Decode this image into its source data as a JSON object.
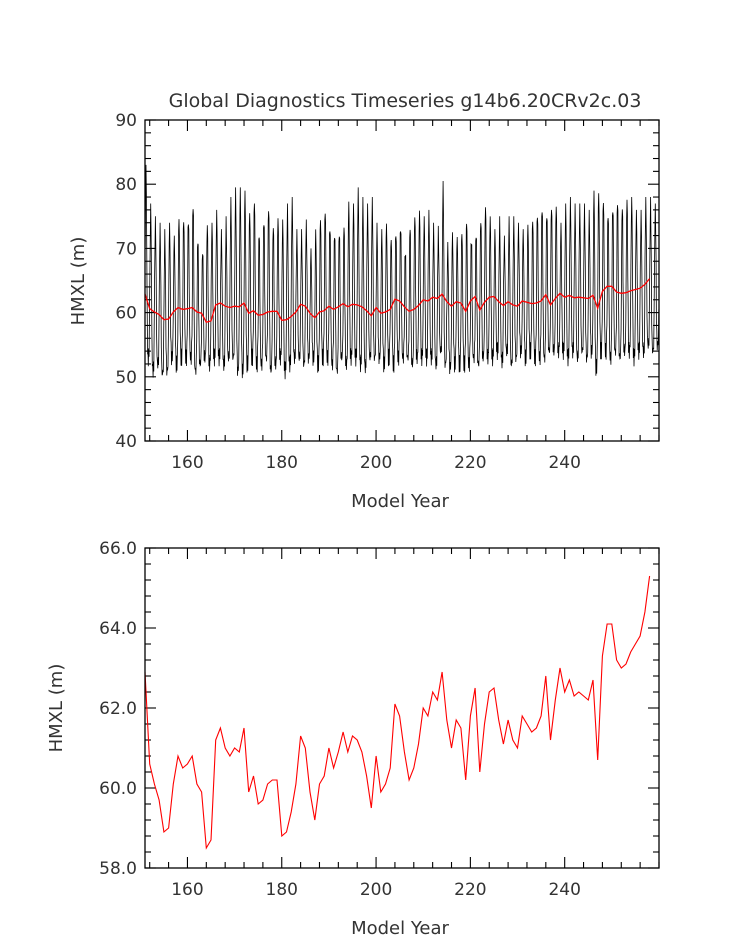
{
  "chart_data": [
    {
      "type": "line",
      "title": "Global Diagnostics Timeseries g14b6.20CRv2c.03",
      "xlabel": "Model Year",
      "ylabel": "HMXL (m)",
      "xlim": [
        151,
        260
      ],
      "ylim": [
        40,
        90
      ],
      "x_ticks": [
        160,
        180,
        200,
        220,
        240
      ],
      "y_ticks": [
        40,
        50,
        60,
        70,
        80,
        90
      ],
      "x_tick_labels": [
        "160",
        "180",
        "200",
        "220",
        "240"
      ],
      "y_tick_labels": [
        "40",
        "50",
        "60",
        "70",
        "80",
        "90"
      ],
      "x_minor_step": 4,
      "y_minor_step": 2,
      "series": [
        {
          "kind": "monthly",
          "color": "#000000",
          "note_values": "Monthly values; each model year oscillates between a winter maximum and a summer minimum.",
          "x_start": 151,
          "annual_max": [
            83,
            77,
            75,
            74,
            73,
            74,
            72,
            75,
            75,
            75,
            77.5,
            72,
            70,
            74,
            74,
            76,
            73,
            75,
            78,
            79.5,
            79.5,
            79,
            76,
            78,
            73,
            75,
            77,
            74,
            75,
            74.5,
            77,
            78,
            73,
            73,
            74.5,
            70,
            73,
            75,
            76.5,
            74,
            73,
            73,
            74,
            77.5,
            77,
            79.5,
            78,
            77,
            78,
            74,
            73,
            74,
            72,
            73,
            74,
            70,
            74,
            75.5,
            76,
            75,
            76,
            74,
            73.5,
            80.5,
            71,
            72.5,
            72,
            73,
            75,
            72,
            73,
            75,
            77,
            75,
            73,
            75,
            72,
            75,
            75,
            74,
            73,
            74,
            75,
            76,
            77,
            76,
            77,
            77,
            74,
            77,
            78,
            77,
            77,
            77,
            76,
            79,
            79,
            78,
            76,
            77,
            78,
            77,
            78,
            78,
            76,
            76,
            78,
            78,
            77,
            76,
            75
          ],
          "annual_min": [
            50,
            48,
            49,
            47.5,
            48,
            50,
            49,
            50,
            50,
            50,
            48,
            49,
            50,
            49,
            50,
            50,
            49,
            50,
            50,
            48,
            48,
            49,
            50,
            49,
            49,
            50,
            48,
            49,
            50,
            48,
            49,
            50,
            50,
            49,
            50,
            50,
            49,
            50,
            50,
            49,
            48,
            50,
            49,
            50,
            50,
            49,
            48.5,
            50,
            50,
            50,
            49,
            50,
            49,
            50,
            50,
            50,
            49,
            50,
            50,
            50,
            50,
            49,
            51,
            49,
            48.5,
            49,
            49,
            49,
            49,
            50,
            49,
            50,
            50,
            50,
            51,
            49.5,
            51,
            49,
            50,
            51,
            50,
            51,
            50,
            50,
            50,
            51,
            51,
            51,
            51,
            50,
            51,
            50,
            51,
            50,
            51,
            48.5,
            51,
            51,
            50,
            51,
            50,
            51,
            51,
            50,
            51,
            51,
            52,
            51,
            52,
            51,
            52
          ]
        },
        {
          "kind": "running",
          "color": "#ff0000",
          "note_values": "Annual mean, identical to the lower panel.",
          "x_start": 151
        }
      ]
    },
    {
      "type": "line",
      "title": "",
      "xlabel": "Model Year",
      "ylabel": "HMXL (m)",
      "xlim": [
        151,
        260
      ],
      "ylim": [
        58,
        66
      ],
      "x_ticks": [
        160,
        180,
        200,
        220,
        240
      ],
      "y_ticks": [
        58,
        60,
        62,
        64,
        66
      ],
      "x_tick_labels": [
        "160",
        "180",
        "200",
        "220",
        "240"
      ],
      "y_tick_labels": [
        "58.0",
        "60.0",
        "62.0",
        "64.0",
        "66.0"
      ],
      "x_minor_step": 4,
      "y_minor_step": 0.4,
      "series": [
        {
          "color": "#ff0000",
          "x_start": 151,
          "values": [
            62.9,
            60.6,
            60.1,
            59.7,
            58.9,
            59.0,
            60.1,
            60.8,
            60.5,
            60.6,
            60.8,
            60.1,
            59.9,
            58.5,
            58.7,
            61.2,
            61.5,
            61.0,
            60.8,
            61.0,
            60.9,
            61.5,
            59.9,
            60.3,
            59.6,
            59.7,
            60.1,
            60.2,
            60.2,
            58.8,
            58.9,
            59.4,
            60.1,
            61.3,
            61.0,
            59.9,
            59.2,
            60.1,
            60.3,
            61.0,
            60.5,
            60.9,
            61.4,
            60.9,
            61.3,
            61.2,
            60.9,
            60.3,
            59.5,
            60.8,
            59.9,
            60.1,
            60.5,
            62.1,
            61.8,
            60.9,
            60.2,
            60.5,
            61.1,
            62.0,
            61.8,
            62.4,
            62.2,
            62.9,
            61.7,
            61.0,
            61.7,
            61.5,
            60.2,
            61.8,
            62.5,
            60.4,
            61.6,
            62.4,
            62.5,
            61.7,
            61.1,
            61.7,
            61.2,
            61.0,
            61.8,
            61.6,
            61.4,
            61.5,
            61.8,
            62.8,
            61.2,
            62.2,
            63.0,
            62.4,
            62.7,
            62.3,
            62.4,
            62.3,
            62.2,
            62.7,
            60.7,
            63.3,
            64.1,
            64.1,
            63.2,
            63.0,
            63.1,
            63.4,
            63.6,
            63.8,
            64.4,
            65.3
          ]
        }
      ]
    }
  ]
}
